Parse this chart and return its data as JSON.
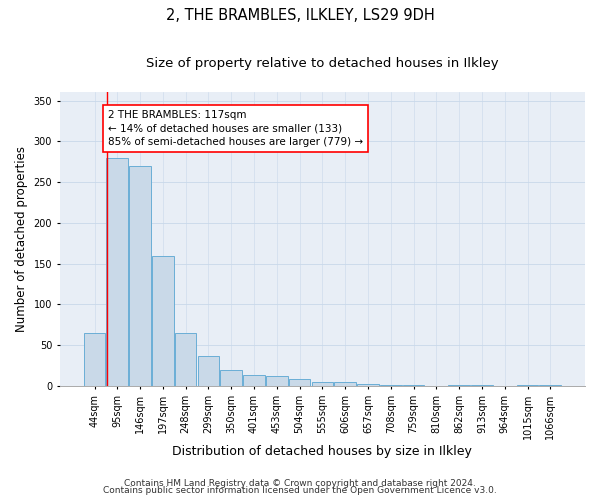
{
  "title": "2, THE BRAMBLES, ILKLEY, LS29 9DH",
  "subtitle": "Size of property relative to detached houses in Ilkley",
  "xlabel": "Distribution of detached houses by size in Ilkley",
  "ylabel": "Number of detached properties",
  "footnote1": "Contains HM Land Registry data © Crown copyright and database right 2024.",
  "footnote2": "Contains public sector information licensed under the Open Government Licence v3.0.",
  "categories": [
    "44sqm",
    "95sqm",
    "146sqm",
    "197sqm",
    "248sqm",
    "299sqm",
    "350sqm",
    "401sqm",
    "453sqm",
    "504sqm",
    "555sqm",
    "606sqm",
    "657sqm",
    "708sqm",
    "759sqm",
    "810sqm",
    "862sqm",
    "913sqm",
    "964sqm",
    "1015sqm",
    "1066sqm"
  ],
  "values": [
    65,
    280,
    270,
    160,
    65,
    37,
    20,
    13,
    12,
    8,
    5,
    5,
    2,
    1,
    1,
    0,
    1,
    1,
    0,
    1,
    1
  ],
  "bar_color": "#c9d9e8",
  "bar_edge_color": "#6aaed6",
  "bar_linewidth": 0.7,
  "annotation_text": "2 THE BRAMBLES: 117sqm\n← 14% of detached houses are smaller (133)\n85% of semi-detached houses are larger (779) →",
  "vline_x": 0.54,
  "ylim": [
    0,
    360
  ],
  "yticks": [
    0,
    50,
    100,
    150,
    200,
    250,
    300,
    350
  ],
  "grid_color": "#c8d8ea",
  "background_color": "#e8eef6",
  "title_fontsize": 10.5,
  "subtitle_fontsize": 9.5,
  "xlabel_fontsize": 9,
  "ylabel_fontsize": 8.5,
  "tick_fontsize": 7,
  "footnote_fontsize": 6.5,
  "annot_fontsize": 7.5
}
